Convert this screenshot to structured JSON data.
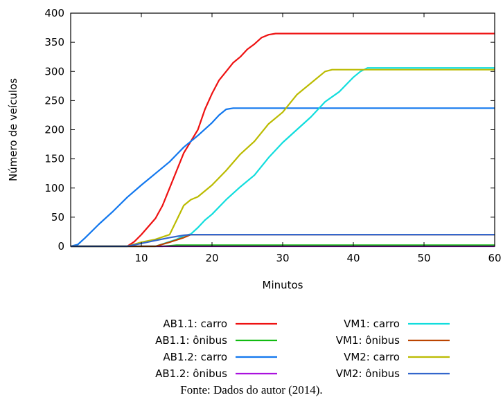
{
  "chart_data": {
    "type": "line",
    "title": "",
    "xlabel": "Minutos",
    "ylabel": "Número de veículos",
    "xlim": [
      0,
      60
    ],
    "ylim": [
      0,
      400
    ],
    "xticks": [
      10,
      20,
      30,
      40,
      50,
      60
    ],
    "yticks": [
      0,
      50,
      100,
      150,
      200,
      250,
      300,
      350,
      400
    ],
    "grid": false,
    "legend_position": "bottom",
    "series": [
      {
        "name": "AB1.1: carro",
        "color": "#ee1111",
        "x": [
          0,
          7,
          8,
          9,
          10,
          12,
          13,
          14,
          16,
          18,
          19,
          20,
          21,
          22,
          23,
          24,
          25,
          26,
          27,
          28,
          29,
          30,
          60
        ],
        "y": [
          0,
          0,
          0,
          8,
          20,
          48,
          70,
          100,
          160,
          200,
          235,
          262,
          285,
          300,
          315,
          325,
          338,
          347,
          358,
          363,
          365,
          365,
          365
        ]
      },
      {
        "name": "AB1.1: ônibus",
        "color": "#11bb11",
        "x": [
          0,
          13,
          14,
          15,
          60
        ],
        "y": [
          0,
          0,
          1,
          2,
          2
        ]
      },
      {
        "name": "AB1.2: carro",
        "color": "#1177ee",
        "x": [
          0,
          1,
          2,
          4,
          6,
          8,
          10,
          12,
          14,
          16,
          18,
          20,
          21,
          22,
          23,
          60
        ],
        "y": [
          0,
          3,
          14,
          38,
          60,
          84,
          105,
          125,
          145,
          170,
          190,
          212,
          225,
          235,
          237,
          237
        ]
      },
      {
        "name": "AB1.2: ônibus",
        "color": "#aa11dd",
        "x": [
          0,
          60
        ],
        "y": [
          0,
          0
        ]
      },
      {
        "name": "VM1: carro",
        "color": "#11dddd",
        "x": [
          0,
          12,
          15,
          16,
          17,
          18,
          19,
          20,
          22,
          24,
          26,
          28,
          30,
          32,
          34,
          36,
          38,
          40,
          41,
          42,
          60
        ],
        "y": [
          0,
          0,
          12,
          18,
          21,
          32,
          45,
          55,
          80,
          102,
          122,
          152,
          178,
          200,
          222,
          248,
          265,
          290,
          300,
          306,
          306
        ]
      },
      {
        "name": "VM1: ônibus",
        "color": "#bb4400",
        "x": [
          0,
          12,
          14,
          16,
          17,
          60
        ],
        "y": [
          0,
          0,
          7,
          15,
          20,
          20
        ]
      },
      {
        "name": "VM2: carro",
        "color": "#bbbb00",
        "x": [
          0,
          8,
          10,
          12,
          14,
          15,
          16,
          17,
          18,
          20,
          22,
          24,
          26,
          28,
          30,
          32,
          34,
          36,
          37,
          40,
          42,
          60
        ],
        "y": [
          0,
          0,
          7,
          12,
          20,
          45,
          70,
          80,
          85,
          105,
          130,
          158,
          180,
          210,
          230,
          260,
          280,
          300,
          303,
          303,
          303,
          303
        ]
      },
      {
        "name": "VM2: ônibus",
        "color": "#3366cc",
        "x": [
          0,
          8,
          10,
          12,
          14,
          16,
          17,
          18,
          60
        ],
        "y": [
          0,
          0,
          5,
          10,
          15,
          19,
          20,
          20,
          20
        ]
      }
    ]
  },
  "source": "Fonte: Dados do autor (2014)."
}
